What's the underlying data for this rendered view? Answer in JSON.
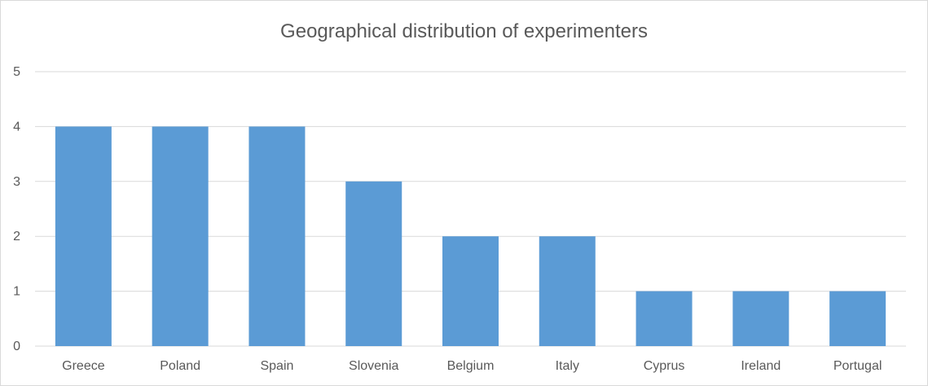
{
  "chart_data": {
    "type": "bar",
    "title": "Geographical distribution of experimenters",
    "categories": [
      "Greece",
      "Poland",
      "Spain",
      "Slovenia",
      "Belgium",
      "Italy",
      "Cyprus",
      "Ireland",
      "Portugal"
    ],
    "values": [
      4,
      4,
      4,
      3,
      2,
      2,
      1,
      1,
      1
    ],
    "ylim": [
      0,
      5
    ],
    "yticks": [
      0,
      1,
      2,
      3,
      4,
      5
    ],
    "grid": true,
    "legend": "none",
    "bar_color": "#5b9bd5",
    "gridline_color": "#d9d9d9",
    "text_color": "#595959"
  }
}
